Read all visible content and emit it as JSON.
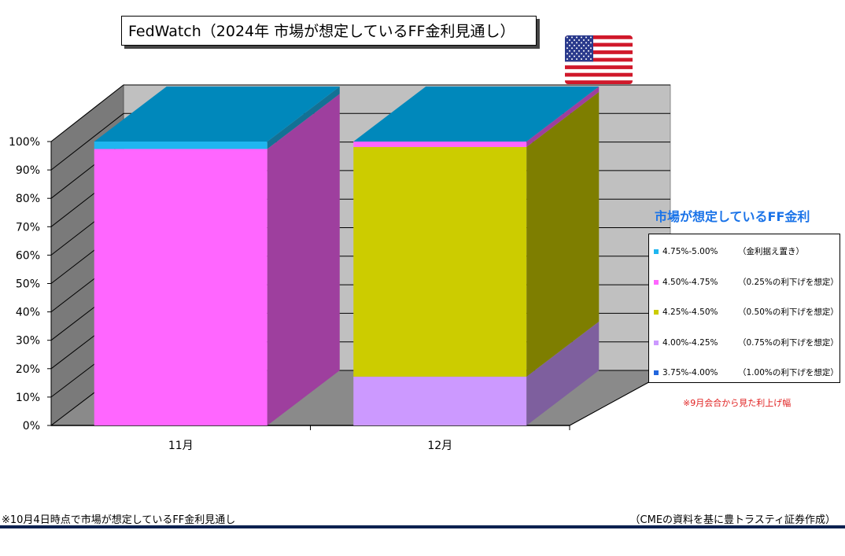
{
  "title": "FedWatch（2024年  市場が想定しているFF金利見通し）",
  "legend": {
    "title": "市場が想定しているFF金利",
    "items": [
      {
        "range": "4.75%-5.00%",
        "note": "（金利据え置き）",
        "color": "#1fb6f0"
      },
      {
        "range": "4.50%-4.75%",
        "note": "（0.25%の利下げを想定）",
        "color": "#ff66ff"
      },
      {
        "range": "4.25%-4.50%",
        "note": "（0.50%の利下げを想定）",
        "color": "#cccc00"
      },
      {
        "range": "4.00%-4.25%",
        "note": "（0.75%の利下げを想定）",
        "color": "#cc99ff"
      },
      {
        "range": "3.75%-4.00%",
        "note": "（1.00%の利下げを想定）",
        "color": "#2266dd"
      }
    ]
  },
  "note_red": "※9月会合から見た利上げ幅",
  "footer": {
    "left": "※10月4日時点で市場が想定しているFF金利見通し",
    "right": "（CMEの資料を基に豊トラスティ証券作成）"
  },
  "flag": {
    "name": "us-flag-icon",
    "colors": {
      "red": "#d0182a",
      "white": "#ffffff",
      "blue": "#2a3a8c"
    }
  },
  "chart_data": {
    "type": "bar",
    "stacked": true,
    "three_d": true,
    "categories": [
      "11月",
      "12月"
    ],
    "ylim": [
      0,
      100
    ],
    "yticks": [
      "0%",
      "10%",
      "20%",
      "30%",
      "40%",
      "50%",
      "60%",
      "70%",
      "80%",
      "90%",
      "100%"
    ],
    "series": [
      {
        "name": "3.75%-4.00%",
        "values": [
          0,
          0
        ],
        "color": "#2266dd"
      },
      {
        "name": "4.00%-4.25%",
        "values": [
          0,
          17.2
        ],
        "color": "#cc99ff"
      },
      {
        "name": "4.25%-4.50%",
        "values": [
          0,
          80.9
        ],
        "color": "#cccc00"
      },
      {
        "name": "4.50%-4.75%",
        "values": [
          97.4,
          1.9
        ],
        "color": "#ff66ff"
      },
      {
        "name": "4.75%-5.00%",
        "values": [
          2.6,
          0
        ],
        "color": "#1fb6f0"
      }
    ],
    "top_color": "#0088bb"
  }
}
